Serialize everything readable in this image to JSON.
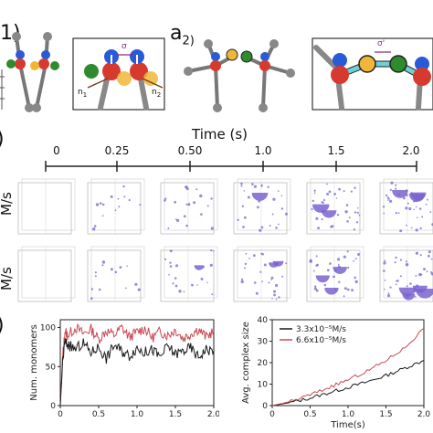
{
  "panels": {
    "a1_label": "1)",
    "a2_label": "a",
    "a2_sub": "2)",
    "b_label": ")",
    "c_label": ")"
  },
  "schematic": {
    "sigma_label": "σ",
    "n1": "n",
    "n1_sub": "1",
    "n2": "n",
    "n2_sub": "2",
    "sigma_prime": "σ'"
  },
  "timeline": {
    "title": "Time (s)",
    "ticks": [
      "0",
      "0.25",
      "0.50",
      "1.0",
      "1.5",
      "2.0"
    ]
  },
  "rows": {
    "row1_label": "M/s",
    "row2_label": "M/s"
  },
  "chart_data": [
    {
      "type": "line",
      "xlabel": "",
      "ylabel": "Num. monomers",
      "xlim": [
        0,
        2.0
      ],
      "ylim": [
        0,
        110
      ],
      "xticks": [
        "0",
        "0.5",
        "1.0",
        "1.5",
        "2.0"
      ],
      "yticks": [
        "0",
        "50",
        "100"
      ],
      "series": [
        {
          "color": "#c84a52",
          "x": [
            0,
            0.03,
            0.06,
            0.1,
            0.2,
            0.3,
            0.4,
            0.5,
            0.6,
            0.7,
            0.8,
            0.9,
            1.0,
            1.1,
            1.2,
            1.3,
            1.4,
            1.5,
            1.6,
            1.7,
            1.8,
            1.9,
            2.0
          ],
          "values": [
            0,
            60,
            95,
            90,
            100,
            92,
            98,
            85,
            96,
            90,
            100,
            88,
            94,
            99,
            87,
            95,
            90,
            97,
            86,
            92,
            98,
            88,
            96
          ]
        },
        {
          "color": "#1a1a1a",
          "x": [
            0,
            0.03,
            0.06,
            0.1,
            0.2,
            0.3,
            0.4,
            0.5,
            0.6,
            0.7,
            0.8,
            0.9,
            1.0,
            1.1,
            1.2,
            1.3,
            1.4,
            1.5,
            1.6,
            1.7,
            1.8,
            1.9,
            2.0
          ],
          "values": [
            0,
            55,
            82,
            78,
            72,
            80,
            68,
            75,
            60,
            78,
            70,
            64,
            74,
            68,
            72,
            62,
            76,
            66,
            70,
            74,
            62,
            72,
            70
          ]
        }
      ]
    },
    {
      "type": "line",
      "xlabel": "Time(s)",
      "ylabel": "Avg. complex size",
      "xlim": [
        0,
        2.0
      ],
      "ylim": [
        0,
        40
      ],
      "xticks": [
        "0",
        "0.5",
        "1.0",
        "1.5",
        "2.0"
      ],
      "yticks": [
        "0",
        "10",
        "20",
        "30",
        "40"
      ],
      "series": [
        {
          "name": "3.3x10⁻⁵M/s",
          "color": "#1a1a1a",
          "x": [
            0,
            0.25,
            0.5,
            0.75,
            1.0,
            1.25,
            1.5,
            1.75,
            2.0
          ],
          "values": [
            0,
            1.5,
            3.5,
            6,
            8.5,
            11,
            14,
            17.5,
            21
          ]
        },
        {
          "name": "6.6x10⁻⁵M/s",
          "color": "#c84a52",
          "x": [
            0,
            0.25,
            0.5,
            0.75,
            1.0,
            1.25,
            1.5,
            1.75,
            2.0
          ],
          "values": [
            0,
            2,
            5,
            8.5,
            12,
            16,
            21,
            27,
            36
          ]
        }
      ]
    }
  ]
}
